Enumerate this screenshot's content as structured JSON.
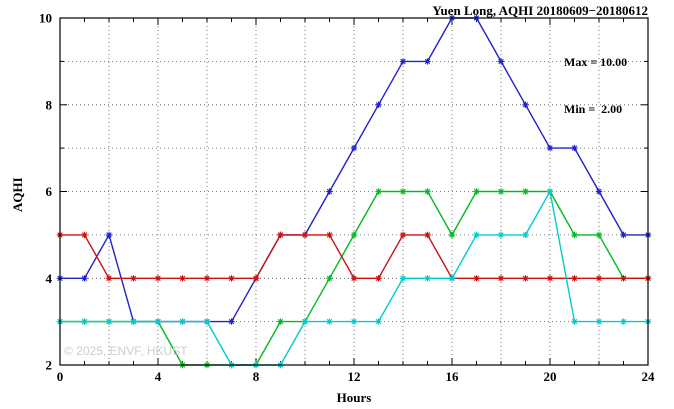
{
  "title": "Yuen Long, AQHI 20180609−20180612",
  "annotation": {
    "max_label": "Max = 10.00",
    "min_label": "Min =  2.00"
  },
  "watermark": "© 2025, ENVF, HKUST",
  "chart_data": {
    "type": "line",
    "title": "Yuen Long, AQHI 20180609-20180612",
    "xlabel": "Hours",
    "ylabel": "AQHI",
    "xlim": [
      0,
      24
    ],
    "ylim": [
      2,
      10
    ],
    "x_major_ticks": [
      0,
      4,
      8,
      12,
      16,
      20,
      24
    ],
    "y_major_ticks": [
      2,
      4,
      6,
      8,
      10
    ],
    "x_grid_every": 2,
    "y_grid_every": 1,
    "grid": "dotted",
    "legend": "none",
    "marker": "star",
    "max_value": 10.0,
    "min_value": 2.0,
    "x": [
      0,
      1,
      2,
      3,
      4,
      5,
      6,
      7,
      8,
      9,
      10,
      11,
      12,
      13,
      14,
      15,
      16,
      17,
      18,
      19,
      20,
      21,
      22,
      23,
      24
    ],
    "series": [
      {
        "name": "blue",
        "color": "#2222cc",
        "values": [
          4,
          4,
          5,
          3,
          3,
          3,
          3,
          3,
          4,
          5,
          5,
          6,
          7,
          8,
          9,
          9,
          10,
          10,
          9,
          8,
          7,
          7,
          6,
          5,
          5
        ]
      },
      {
        "name": "green",
        "color": "#00bb22",
        "values": [
          3,
          3,
          3,
          3,
          3,
          2,
          2,
          2,
          2,
          3,
          3,
          4,
          5,
          6,
          6,
          6,
          5,
          6,
          6,
          6,
          6,
          5,
          5,
          4,
          4
        ]
      },
      {
        "name": "red",
        "color": "#cc1111",
        "values": [
          5,
          5,
          4,
          4,
          4,
          4,
          4,
          4,
          4,
          5,
          5,
          5,
          4,
          4,
          5,
          5,
          4,
          4,
          4,
          4,
          4,
          4,
          4,
          4,
          4
        ]
      },
      {
        "name": "cyan",
        "color": "#00cccc",
        "values": [
          3,
          3,
          3,
          3,
          3,
          3,
          3,
          2,
          2,
          2,
          3,
          3,
          3,
          3,
          4,
          4,
          4,
          5,
          5,
          5,
          6,
          3,
          3,
          3,
          3
        ]
      }
    ]
  }
}
